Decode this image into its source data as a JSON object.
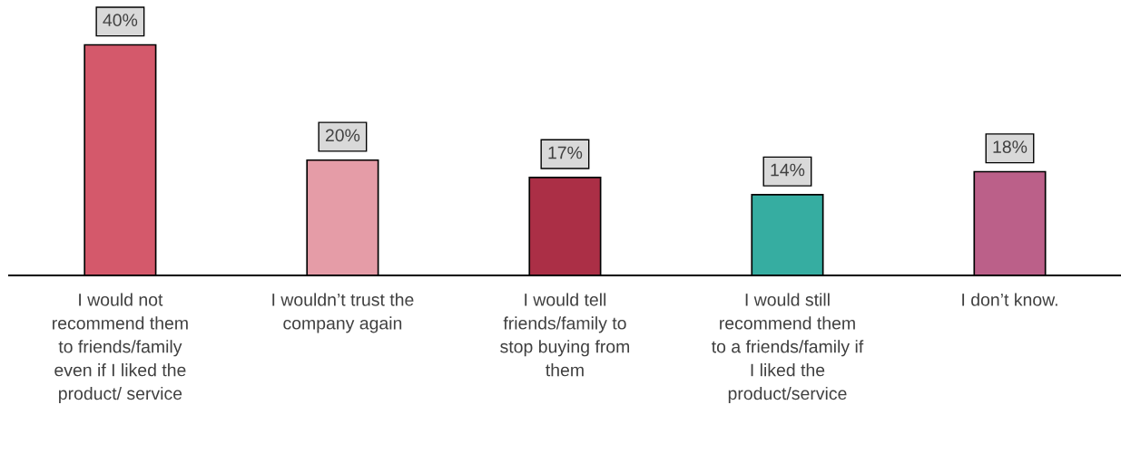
{
  "chart_data": {
    "type": "bar",
    "categories": [
      "I would not\nrecommend them\nto friends/family\neven if I liked the\nproduct/ service",
      "I wouldn’t trust the\ncompany again",
      "I would tell\nfriends/family to\nstop buying from\nthem",
      "I would still\nrecommend them\nto a friends/family if\nI liked the\nproduct/service",
      "I don’t know."
    ],
    "values": [
      40,
      20,
      17,
      14,
      18
    ],
    "colors": [
      "#d4596b",
      "#e59ca7",
      "#ab2f46",
      "#36ada1",
      "#bb6089"
    ],
    "value_labels": [
      "40%",
      "20%",
      "17%",
      "14%",
      "18%"
    ],
    "grid": false,
    "legend": false
  }
}
